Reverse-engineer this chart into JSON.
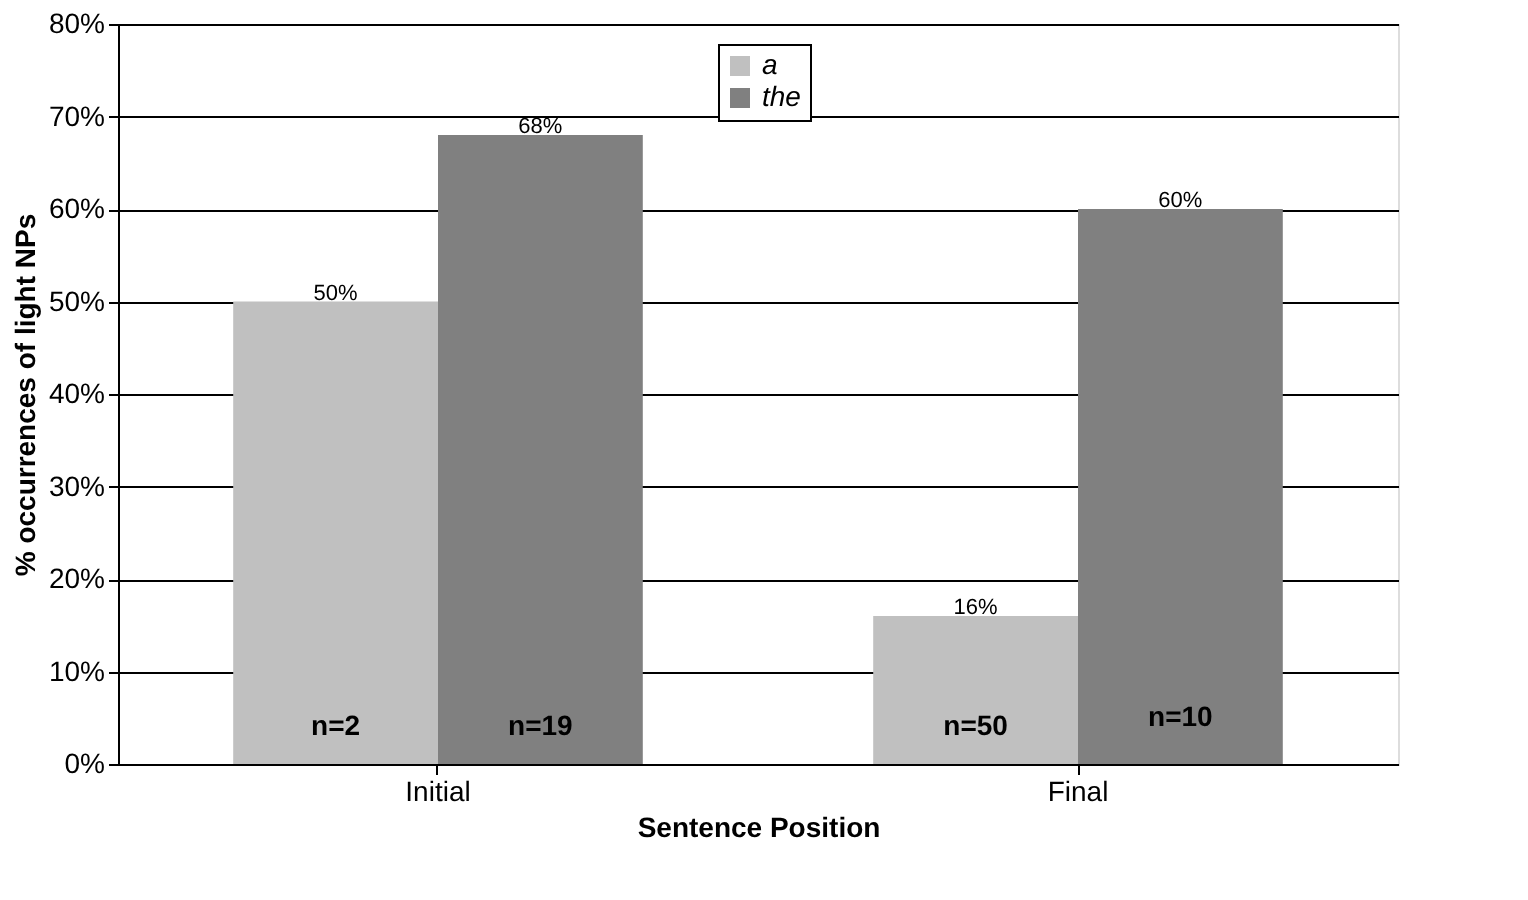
{
  "chart_data": {
    "type": "bar",
    "xlabel": "Sentence Position",
    "ylabel": "% occurrences of light NPs",
    "categories": [
      "Initial",
      "Final"
    ],
    "series": [
      {
        "name": "a",
        "color": "#c0c0c0",
        "values": [
          50,
          16
        ],
        "value_labels": [
          "50%",
          "16%"
        ]
      },
      {
        "name": "the",
        "color": "#808080",
        "values": [
          68,
          60
        ],
        "value_labels": [
          "68%",
          "60%"
        ]
      }
    ],
    "ylim": [
      0,
      80
    ],
    "yticks": [
      {
        "value": 0,
        "label": "0%"
      },
      {
        "value": 10,
        "label": "10%"
      },
      {
        "value": 20,
        "label": "20%"
      },
      {
        "value": 30,
        "label": "30%"
      },
      {
        "value": 40,
        "label": "40%"
      },
      {
        "value": 50,
        "label": "50%"
      },
      {
        "value": 60,
        "label": "60%"
      },
      {
        "value": 70,
        "label": "70%"
      },
      {
        "value": 80,
        "label": "80%"
      }
    ],
    "grid": "y",
    "legend": "top",
    "annotations": [
      {
        "text": "n=2",
        "x": "Initial",
        "y": 4
      },
      {
        "text": "n=19",
        "x": "Initial",
        "y": 4
      },
      {
        "text": "n=50",
        "x": "Final",
        "y": 4
      },
      {
        "text": "n=10",
        "x": "Final",
        "y": 5
      }
    ]
  }
}
